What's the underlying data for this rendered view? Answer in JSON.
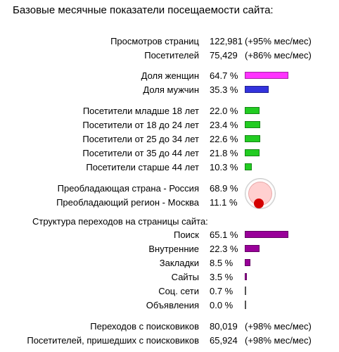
{
  "title": "Базовые месячные показатели посещаемости сайта:",
  "traffic": [
    {
      "label": "Просмотров страниц",
      "value": "122,981",
      "change": "(+95% мес/мес)"
    },
    {
      "label": "Посетителей",
      "value": "75,429",
      "change": "(+86% мес/мес)"
    }
  ],
  "gender": [
    {
      "label": "Доля женщин",
      "value": "64.7 %",
      "pct": 64.7,
      "color": "#ff33ff"
    },
    {
      "label": "Доля мужчин",
      "value": "35.3 %",
      "pct": 35.3,
      "color": "#3333dd"
    }
  ],
  "age": [
    {
      "label": "Посетители младше 18 лет",
      "value": "22.0 %",
      "pct": 22.0,
      "color": "#22cc22"
    },
    {
      "label": "Посетители от 18 до 24 лет",
      "value": "23.4 %",
      "pct": 23.4,
      "color": "#22cc22"
    },
    {
      "label": "Посетители от 25 до 34 лет",
      "value": "22.6 %",
      "pct": 22.6,
      "color": "#22cc22"
    },
    {
      "label": "Посетители от 35 до 44 лет",
      "value": "21.8 %",
      "pct": 21.8,
      "color": "#22cc22"
    },
    {
      "label": "Посетители старше 44 лет",
      "value": "10.3 %",
      "pct": 10.3,
      "color": "#22cc22"
    }
  ],
  "geo": [
    {
      "label": "Преобладающая страна - Россия",
      "value": "68.9 %",
      "pct": 68.9
    },
    {
      "label": "Преобладающий регион - Москва",
      "value": "11.1 %",
      "pct": 11.1
    }
  ],
  "referrals_title": "Структура переходов на страницы сайта:",
  "referrals": [
    {
      "label": "Поиск",
      "value": "65.1 %",
      "pct": 65.1,
      "color": "#990099"
    },
    {
      "label": "Внутренние",
      "value": "22.3 %",
      "pct": 22.3,
      "color": "#990099"
    },
    {
      "label": "Закладки",
      "value": "8.5 %",
      "pct": 8.5,
      "color": "#990099"
    },
    {
      "label": "Сайты",
      "value": "3.5 %",
      "pct": 3.5,
      "color": "#990099"
    },
    {
      "label": "Соц. сети",
      "value": "0.7 %",
      "pct": 0.7,
      "color": "#555555"
    },
    {
      "label": "Объявления",
      "value": "0.0 %",
      "pct": 0.0,
      "color": "#555555"
    }
  ],
  "search": [
    {
      "label": "Переходов с поисковиков",
      "value": "80,019",
      "change": "(+98% мес/мес)"
    },
    {
      "label": "Посетителей, пришедших с поисковиков",
      "value": "65,924",
      "change": "(+98% мес/мес)"
    }
  ]
}
